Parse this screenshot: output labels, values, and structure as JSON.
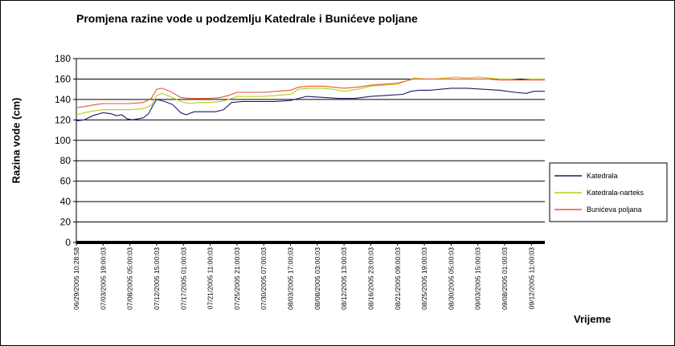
{
  "chart_data": {
    "type": "line",
    "title": "Promjena razine vode u podzemlju Katedrale i Bunićeve poljane",
    "xlabel": "Vrijeme",
    "ylabel": "Razina vode (cm)",
    "ylim": [
      0,
      180
    ],
    "yticks": [
      0,
      20,
      40,
      60,
      80,
      100,
      120,
      140,
      160,
      180
    ],
    "grid": true,
    "legend": "right",
    "xticks": [
      "06/29/2005 10:28:58",
      "07/03/2005 19:00:03",
      "07/08/2005 05:00:03",
      "07/12/2005 15:00:03",
      "07/17/2005 01:00:03",
      "07/21/2005 11:00:03",
      "07/25/2005 21:00:03",
      "07/30/2005 07:00:03",
      "08/03/2005 17:00:03",
      "08/08/2005 03:00:03",
      "08/12/2005 13:00:03",
      "08/16/2005 23:00:03",
      "08/21/2005 09:00:03",
      "08/25/2005 19:00:03",
      "08/30/2005 05:00:03",
      "09/03/2005 15:00:03",
      "09/08/2005 01:00:03",
      "09/12/2005 11:00:03"
    ],
    "x_positions": [
      0,
      1,
      2,
      3,
      4,
      5,
      6,
      7,
      8,
      9,
      10,
      11,
      12,
      13,
      14,
      15,
      16,
      17
    ],
    "series": [
      {
        "name": "Katedrala",
        "color": "#1a1a6e",
        "points": [
          [
            0,
            119
          ],
          [
            0.3,
            120
          ],
          [
            0.6,
            124
          ],
          [
            1,
            127
          ],
          [
            1.3,
            126
          ],
          [
            1.5,
            124
          ],
          [
            1.7,
            125
          ],
          [
            1.9,
            121
          ],
          [
            2.1,
            120
          ],
          [
            2.3,
            121
          ],
          [
            2.5,
            122
          ],
          [
            2.7,
            126
          ],
          [
            2.9,
            136
          ],
          [
            3.0,
            140
          ],
          [
            3.3,
            138
          ],
          [
            3.6,
            135
          ],
          [
            3.9,
            127
          ],
          [
            4.1,
            125
          ],
          [
            4.4,
            128
          ],
          [
            4.8,
            128
          ],
          [
            5.2,
            128
          ],
          [
            5.5,
            130
          ],
          [
            5.8,
            137
          ],
          [
            6.2,
            138
          ],
          [
            6.8,
            138
          ],
          [
            7.4,
            138
          ],
          [
            8.0,
            139
          ],
          [
            8.3,
            141
          ],
          [
            8.6,
            143
          ],
          [
            9.2,
            142
          ],
          [
            9.8,
            141
          ],
          [
            10.4,
            141
          ],
          [
            11.0,
            143
          ],
          [
            11.6,
            144
          ],
          [
            12.2,
            145
          ],
          [
            12.5,
            148
          ],
          [
            12.8,
            149
          ],
          [
            13.2,
            149
          ],
          [
            13.6,
            150
          ],
          [
            14.0,
            151
          ],
          [
            14.6,
            151
          ],
          [
            15.2,
            150
          ],
          [
            15.8,
            149
          ],
          [
            16.4,
            147
          ],
          [
            16.8,
            146
          ],
          [
            17.1,
            148
          ],
          [
            17.5,
            148
          ]
        ]
      },
      {
        "name": "Katedrala-narteks",
        "color": "#b8cc1a",
        "points": [
          [
            0,
            125
          ],
          [
            0.3,
            127
          ],
          [
            0.7,
            129
          ],
          [
            1,
            130
          ],
          [
            1.5,
            130
          ],
          [
            2,
            130
          ],
          [
            2.5,
            131
          ],
          [
            2.8,
            134
          ],
          [
            3.0,
            144
          ],
          [
            3.2,
            146
          ],
          [
            3.5,
            143
          ],
          [
            3.9,
            138
          ],
          [
            4.2,
            136
          ],
          [
            4.6,
            137
          ],
          [
            5.0,
            137
          ],
          [
            5.4,
            138
          ],
          [
            5.7,
            140
          ],
          [
            6.0,
            143
          ],
          [
            6.5,
            143
          ],
          [
            7.0,
            143
          ],
          [
            7.5,
            144
          ],
          [
            8.0,
            145
          ],
          [
            8.3,
            150
          ],
          [
            8.7,
            151
          ],
          [
            9.2,
            151
          ],
          [
            9.6,
            150
          ],
          [
            10.0,
            148
          ],
          [
            10.5,
            150
          ],
          [
            11.0,
            153
          ],
          [
            11.5,
            154
          ],
          [
            12.0,
            155
          ],
          [
            12.3,
            158
          ],
          [
            12.6,
            161
          ],
          [
            13.0,
            160
          ],
          [
            13.4,
            160
          ],
          [
            13.8,
            161
          ],
          [
            14.2,
            162
          ],
          [
            14.6,
            161
          ],
          [
            15.0,
            162
          ],
          [
            15.4,
            161
          ],
          [
            15.8,
            160
          ],
          [
            16.2,
            160
          ],
          [
            16.6,
            159
          ],
          [
            17.0,
            160
          ],
          [
            17.5,
            160
          ]
        ]
      },
      {
        "name": "Bunićeva poljana",
        "color": "#e8562a",
        "points": [
          [
            0,
            132
          ],
          [
            0.3,
            133
          ],
          [
            0.7,
            135
          ],
          [
            1,
            136
          ],
          [
            1.5,
            136
          ],
          [
            2,
            136
          ],
          [
            2.5,
            137
          ],
          [
            2.8,
            141
          ],
          [
            3.0,
            150
          ],
          [
            3.2,
            151
          ],
          [
            3.5,
            148
          ],
          [
            3.9,
            142
          ],
          [
            4.2,
            141
          ],
          [
            4.6,
            141
          ],
          [
            5.0,
            141
          ],
          [
            5.4,
            142
          ],
          [
            5.7,
            144
          ],
          [
            6.0,
            147
          ],
          [
            6.5,
            147
          ],
          [
            7.0,
            147
          ],
          [
            7.5,
            148
          ],
          [
            8.0,
            149
          ],
          [
            8.3,
            152
          ],
          [
            8.7,
            153
          ],
          [
            9.2,
            153
          ],
          [
            9.6,
            152
          ],
          [
            10.0,
            151
          ],
          [
            10.5,
            152
          ],
          [
            11.0,
            154
          ],
          [
            11.5,
            155
          ],
          [
            12.0,
            156
          ],
          [
            12.3,
            158
          ],
          [
            12.6,
            160
          ],
          [
            13.0,
            160
          ],
          [
            13.4,
            160
          ],
          [
            13.8,
            160
          ],
          [
            14.2,
            160
          ],
          [
            14.6,
            160
          ],
          [
            15.0,
            160
          ],
          [
            15.4,
            160
          ],
          [
            15.8,
            159
          ],
          [
            16.2,
            159
          ],
          [
            16.6,
            159
          ],
          [
            17.0,
            159
          ],
          [
            17.5,
            159
          ]
        ]
      }
    ]
  }
}
